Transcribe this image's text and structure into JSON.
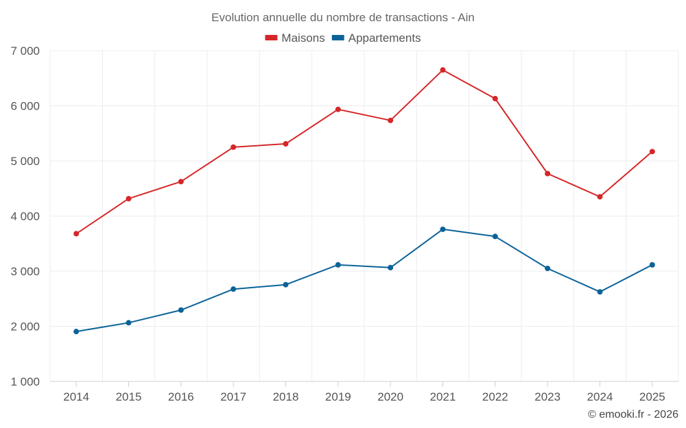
{
  "chart_data": {
    "type": "line",
    "title": "Evolution annuelle du nombre de transactions - Ain",
    "categories": [
      "2014",
      "2015",
      "2016",
      "2017",
      "2018",
      "2019",
      "2020",
      "2021",
      "2022",
      "2023",
      "2024",
      "2025"
    ],
    "series": [
      {
        "name": "Maisons",
        "color": "#d62728",
        "values": [
          3680,
          4315,
          4625,
          5250,
          5310,
          5935,
          5735,
          6650,
          6130,
          4770,
          4350,
          5170
        ]
      },
      {
        "name": "Appartements",
        "color": "#0b6399",
        "values": [
          1905,
          2065,
          2295,
          2675,
          2755,
          3115,
          3065,
          3760,
          3630,
          3050,
          2625,
          3115
        ]
      }
    ],
    "ylim": [
      1000,
      7000
    ],
    "yticks": [
      1000,
      2000,
      3000,
      4000,
      5000,
      6000,
      7000
    ],
    "ytick_labels": [
      "1 000",
      "2 000",
      "3 000",
      "4 000",
      "5 000",
      "6 000",
      "7 000"
    ],
    "xlabel": "",
    "ylabel": "",
    "grid": true,
    "legend_position": "top-center"
  },
  "credit": "© emooki.fr - 2026"
}
